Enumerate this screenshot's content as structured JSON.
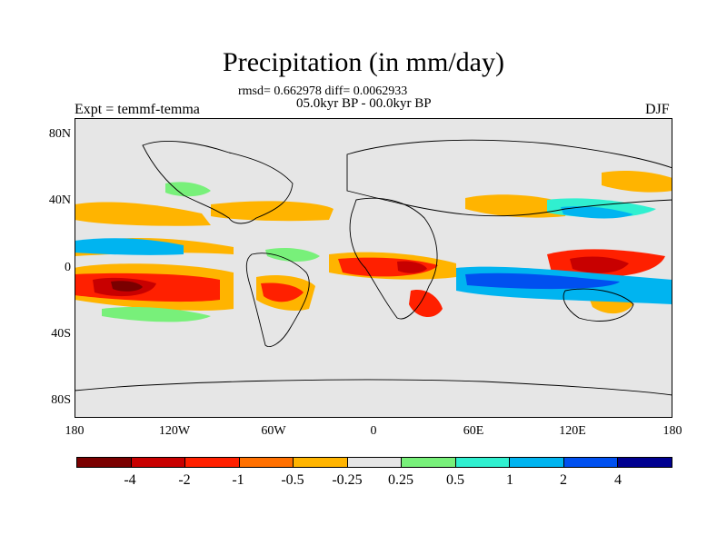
{
  "figure": {
    "title": "Precipitation (in mm/day)",
    "stats": "rmsd= 0.662978 diff= 0.0062933",
    "period": "05.0kyr BP - 00.0kyr BP",
    "experiment": "Expt = temmf-temma",
    "season": "DJF"
  },
  "axes": {
    "lat_labels": [
      "80N",
      "40N",
      "0",
      "40S",
      "80S"
    ],
    "lon_labels": [
      "180",
      "120W",
      "60W",
      "0",
      "60E",
      "120E",
      "180"
    ]
  },
  "colorbar": {
    "labels": [
      "-4",
      "-2",
      "-1",
      "-0.5",
      "-0.25",
      "0.25",
      "0.5",
      "1",
      "2",
      "4"
    ],
    "colors": [
      "#7a0000",
      "#c80000",
      "#ff2000",
      "#ff7000",
      "#ffb400",
      "#e6e6e6",
      "#78f07a",
      "#30f0d0",
      "#00b4f0",
      "#0050f0",
      "#000090"
    ]
  },
  "colors": {
    "ocean": "#e6e6e6",
    "coast": "#000000"
  }
}
